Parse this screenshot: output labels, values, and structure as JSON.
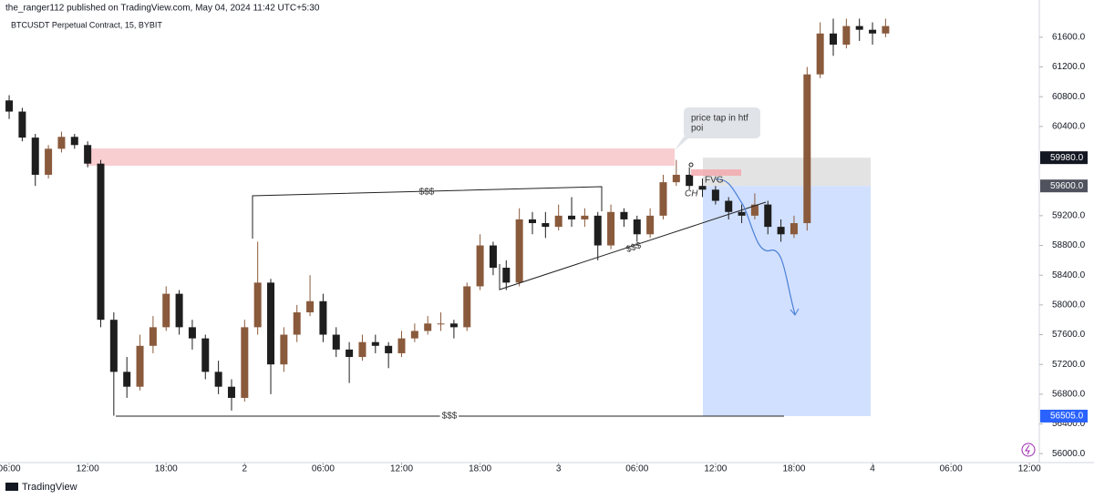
{
  "header": {
    "published": "the_ranger112 published on TradingView.com, May 04, 2024 11:42 UTC+5:30",
    "symbol": "BTCUSDT Perpetual Contract, 15, BYBIT",
    "brand": "TradingView"
  },
  "chart_data": {
    "type": "candlestick",
    "x": [
      6,
      7,
      8,
      9,
      10,
      11,
      12,
      13,
      14,
      15,
      16,
      17,
      18,
      19,
      20,
      21,
      22,
      23,
      24,
      25,
      26,
      27,
      28,
      29,
      30,
      31,
      32,
      33,
      34,
      35,
      36,
      37,
      38,
      39,
      40,
      41,
      42,
      43,
      44,
      45,
      46,
      47,
      48,
      49,
      50,
      51,
      52,
      53,
      54,
      55,
      56,
      57,
      58,
      59,
      60,
      61,
      62,
      63,
      64,
      65,
      66,
      67,
      68,
      69,
      70,
      71,
      72,
      73
    ],
    "open": [
      60750,
      60600,
      60250,
      59750,
      60100,
      60260,
      60150,
      59900,
      57800,
      57100,
      56900,
      57450,
      57700,
      58150,
      57700,
      57550,
      57100,
      56900,
      56750,
      57700,
      58300,
      57200,
      57600,
      57900,
      58050,
      57600,
      57400,
      57300,
      57500,
      57450,
      57350,
      57550,
      57650,
      57750,
      57750,
      57700,
      58250,
      58800,
      58500,
      58300,
      59150,
      59100,
      59050,
      59200,
      59150,
      59200,
      58800,
      59250,
      59150,
      58950,
      59200,
      59650,
      59750,
      59600,
      59550,
      59400,
      59250,
      59200,
      59350,
      59050,
      58950,
      59100,
      61100,
      61650,
      61500,
      61750,
      61700,
      61650
    ],
    "high": [
      60820,
      60650,
      60300,
      60150,
      60330,
      60300,
      60200,
      59950,
      57900,
      57300,
      57600,
      57850,
      58250,
      58200,
      57800,
      57600,
      57250,
      57000,
      57800,
      58850,
      58350,
      57700,
      58000,
      58400,
      58150,
      57700,
      57500,
      57600,
      57600,
      57500,
      57650,
      57750,
      57850,
      57900,
      57800,
      58300,
      58950,
      58850,
      58600,
      59300,
      59250,
      59250,
      59350,
      59450,
      59300,
      59250,
      59350,
      59300,
      59200,
      59300,
      59750,
      59950,
      59850,
      59700,
      59600,
      59450,
      59350,
      59500,
      59400,
      59150,
      59200,
      61200,
      61800,
      61850,
      61850,
      61850,
      61800,
      61850
    ],
    "low": [
      60500,
      60200,
      59600,
      59700,
      60050,
      60100,
      59850,
      57700,
      56510,
      56750,
      56850,
      57350,
      57650,
      57600,
      57400,
      57000,
      56800,
      56580,
      56700,
      57600,
      56800,
      57100,
      57500,
      57850,
      57500,
      57300,
      56950,
      57250,
      57350,
      57150,
      57300,
      57500,
      57600,
      57650,
      57550,
      57650,
      58200,
      58400,
      58200,
      58250,
      58950,
      58900,
      59000,
      59050,
      59050,
      58600,
      58750,
      59050,
      58850,
      58900,
      59150,
      59600,
      59550,
      59450,
      59350,
      59150,
      59100,
      59150,
      58950,
      58850,
      58900,
      59000,
      61050,
      61350,
      61450,
      61550,
      61500,
      61600
    ],
    "close": [
      60600,
      60250,
      59750,
      60100,
      60260,
      60150,
      59900,
      57800,
      57100,
      56900,
      57450,
      57700,
      58150,
      57700,
      57550,
      57100,
      56900,
      56750,
      57700,
      58300,
      57200,
      57600,
      57900,
      58050,
      57600,
      57400,
      57300,
      57500,
      57450,
      57350,
      57550,
      57650,
      57750,
      57750,
      57700,
      58250,
      58800,
      58500,
      58300,
      59150,
      59100,
      59050,
      59200,
      59150,
      59200,
      58800,
      59250,
      59150,
      58950,
      59200,
      59650,
      59750,
      59600,
      59550,
      59400,
      59250,
      59200,
      59350,
      59050,
      58950,
      59100,
      61100,
      61650,
      61500,
      61750,
      61700,
      61650,
      61750
    ],
    "up_color": "#8a5a3c",
    "down_color": "#1e1e1e",
    "xlim": [
      5.3,
      84.75
    ],
    "ylim": [
      55880,
      61880
    ],
    "xticks": [
      {
        "value": 6,
        "label": "06:00"
      },
      {
        "value": 12,
        "label": "12:00"
      },
      {
        "value": 18,
        "label": "18:00"
      },
      {
        "value": 24,
        "label": "2"
      },
      {
        "value": 30,
        "label": "06:00"
      },
      {
        "value": 36,
        "label": "12:00"
      },
      {
        "value": 42,
        "label": "18:00"
      },
      {
        "value": 48,
        "label": "3"
      },
      {
        "value": 54,
        "label": "06:00"
      },
      {
        "value": 60,
        "label": "12:00"
      },
      {
        "value": 66,
        "label": "18:00"
      },
      {
        "value": 72,
        "label": "4"
      },
      {
        "value": 78,
        "label": "06:00"
      },
      {
        "value": 84,
        "label": "12:00"
      }
    ],
    "yticks": [
      {
        "value": 56000,
        "label": "56000.0"
      },
      {
        "value": 56400,
        "label": "56400.0"
      },
      {
        "value": 56800,
        "label": "56800.0"
      },
      {
        "value": 57200,
        "label": "57200.0"
      },
      {
        "value": 57600,
        "label": "57600.0"
      },
      {
        "value": 58000,
        "label": "58000.0"
      },
      {
        "value": 58400,
        "label": "58400.0"
      },
      {
        "value": 58800,
        "label": "58800.0"
      },
      {
        "value": 59200,
        "label": "59200.0"
      },
      {
        "value": 60400,
        "label": "60400.0"
      },
      {
        "value": 60800,
        "label": "60800.0"
      },
      {
        "value": 61200,
        "label": "61200.0"
      },
      {
        "value": 61600,
        "label": "61600.0"
      }
    ],
    "price_labels": [
      {
        "value": 59980,
        "label": "59980.0",
        "color": "#131722"
      },
      {
        "value": 59600,
        "label": "59600.0",
        "color": "#50535e"
      },
      {
        "value": 56505,
        "label": "56505.0",
        "color": "#2962ff"
      }
    ],
    "annotations": {
      "callout": [
        "price tap  in htf",
        "poi"
      ],
      "liquidity": [
        "$$$",
        "$$$",
        "$$$"
      ],
      "fvg": "FVG",
      "choch": "CH"
    }
  }
}
